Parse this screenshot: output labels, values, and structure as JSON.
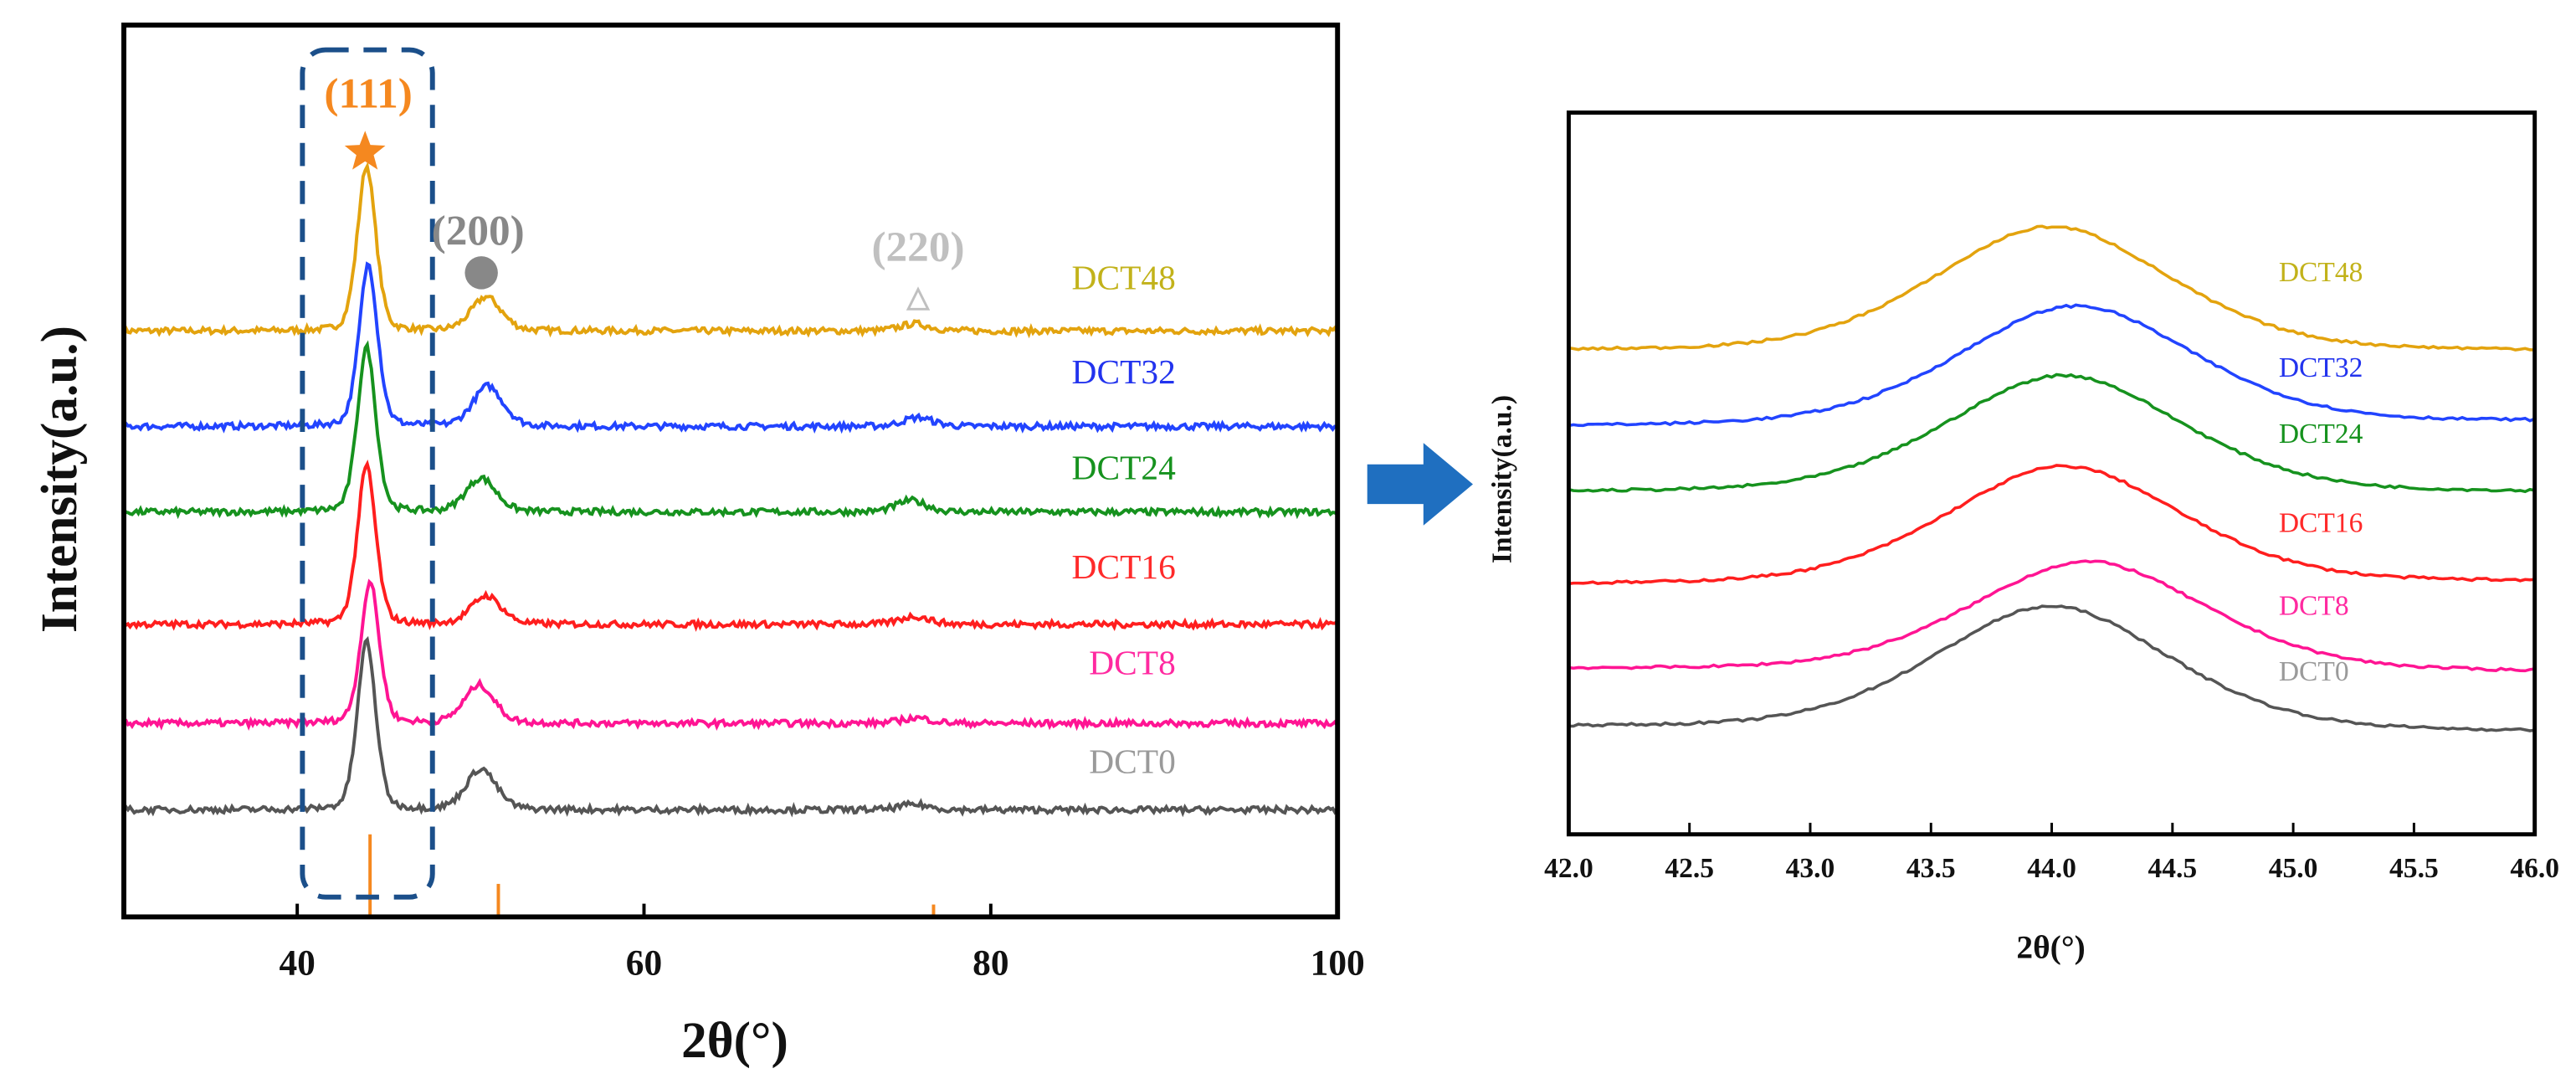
{
  "chart_data": [
    {
      "type": "line",
      "title": "",
      "xlabel": "2θ(°)",
      "ylabel": "Intensity(a.u.)",
      "xlim": [
        30,
        100
      ],
      "ylim": [
        0,
        100
      ],
      "xticks": [
        "40",
        "60",
        "80",
        "100"
      ],
      "xtick_values": [
        40,
        60,
        80,
        100
      ],
      "grid": false,
      "series": [
        {
          "name": "DCT48",
          "color": "#E3A30E",
          "label_color": "#C2B21A",
          "baseline": 65.7,
          "peaks": [
            {
              "center": 44.0,
              "height": 18.5
            },
            {
              "center": 50.9,
              "height": 3.8
            },
            {
              "center": 75.6,
              "height": 0.8
            }
          ]
        },
        {
          "name": "DCT32",
          "color": "#2244FF",
          "label_color": "#2233EE",
          "baseline": 55.0,
          "peaks": [
            {
              "center": 44.1,
              "height": 18.2
            },
            {
              "center": 51.0,
              "height": 4.5
            },
            {
              "center": 75.8,
              "height": 1.0
            }
          ]
        },
        {
          "name": "DCT24",
          "color": "#16921E",
          "label_color": "#16921E",
          "baseline": 45.4,
          "peaks": [
            {
              "center": 44.0,
              "height": 18.5
            },
            {
              "center": 50.6,
              "height": 3.8
            },
            {
              "center": 75.4,
              "height": 1.3
            }
          ]
        },
        {
          "name": "DCT16",
          "color": "#FF1E1E",
          "label_color": "#FF2A2A",
          "baseline": 32.8,
          "peaks": [
            {
              "center": 44.0,
              "height": 17.8
            },
            {
              "center": 50.9,
              "height": 3.2
            },
            {
              "center": 75.6,
              "height": 0.9
            }
          ]
        },
        {
          "name": "DCT8",
          "color": "#FF1493",
          "label_color": "#FF2AA0",
          "baseline": 21.7,
          "peaks": [
            {
              "center": 44.2,
              "height": 15.9
            },
            {
              "center": 50.5,
              "height": 4.3
            },
            {
              "center": 75.7,
              "height": 0.6
            }
          ]
        },
        {
          "name": "DCT0",
          "color": "#555555",
          "label_color": "#9A9A9A",
          "baseline": 12.0,
          "peaks": [
            {
              "center": 44.0,
              "height": 18.9
            },
            {
              "center": 50.6,
              "height": 4.6
            },
            {
              "center": 75.6,
              "height": 0.6
            }
          ]
        }
      ],
      "annotations": [
        {
          "text": "(111)",
          "color": "#F5881F",
          "symbol": "star",
          "x": 44.1
        },
        {
          "text": "(200)",
          "color": "#888888",
          "symbol": "circle",
          "x": 51.0
        },
        {
          "text": "(220)",
          "color": "#C0C0C0",
          "symbol": "triangle",
          "x": 76.0
        }
      ],
      "reference_lines": [
        {
          "x": 44.2,
          "relative_height": 1.0
        },
        {
          "x": 51.6,
          "relative_height": 0.4
        },
        {
          "x": 76.7,
          "relative_height": 0.15
        }
      ],
      "reference_color": "#F5881F",
      "highlight_box": {
        "x_range": [
          40.3,
          47.8
        ],
        "color": "#1B4F8A"
      }
    },
    {
      "type": "line",
      "title": "",
      "xlabel": "2θ(°)",
      "ylabel": "Intensity(a.u.)",
      "xlim": [
        42.0,
        46.0
      ],
      "ylim": [
        0,
        100
      ],
      "xticks": [
        "42.0",
        "42.5",
        "43.0",
        "43.5",
        "44.0",
        "44.5",
        "45.0",
        "45.5",
        "46.0"
      ],
      "xtick_values": [
        42.0,
        42.5,
        43.0,
        43.5,
        44.0,
        44.5,
        45.0,
        45.5,
        46.0
      ],
      "grid": false,
      "series": [
        {
          "name": "DCT48",
          "color": "#E3A30E",
          "label_color": "#C2B21A",
          "baseline_left": 67.0,
          "baseline_right": 67.0,
          "peak_center": 44.0,
          "peak_value": 84.2
        },
        {
          "name": "DCT32",
          "color": "#2244FF",
          "label_color": "#2233EE",
          "baseline_left": 56.5,
          "baseline_right": 57.2,
          "peak_center": 44.1,
          "peak_value": 73.2
        },
        {
          "name": "DCT24",
          "color": "#16921E",
          "label_color": "#16921E",
          "baseline_left": 47.4,
          "baseline_right": 47.4,
          "peak_center": 44.05,
          "peak_value": 63.6
        },
        {
          "name": "DCT16",
          "color": "#FF1E1E",
          "label_color": "#FF2A2A",
          "baseline_left": 34.6,
          "baseline_right": 35.0,
          "peak_center": 44.05,
          "peak_value": 51.0
        },
        {
          "name": "DCT8",
          "color": "#FF1493",
          "label_color": "#FF2AA0",
          "baseline_left": 22.9,
          "baseline_right": 22.5,
          "peak_center": 44.15,
          "peak_value": 37.8
        },
        {
          "name": "DCT0",
          "color": "#555555",
          "label_color": "#9A9A9A",
          "baseline_left": 14.9,
          "baseline_right": 14.2,
          "peak_center": 44.0,
          "peak_value": 31.6
        }
      ]
    }
  ],
  "arrow": {
    "color": "#1F6FC0",
    "icon": "arrow-right-icon"
  }
}
